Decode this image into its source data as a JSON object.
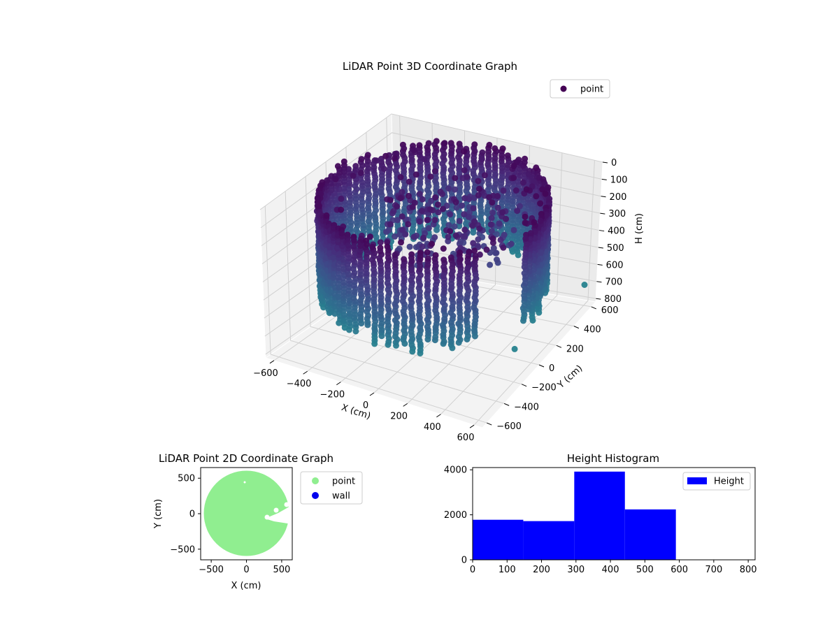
{
  "chart_data": [
    {
      "type": "scatter",
      "projection": "3d",
      "title": "LiDAR Point 3D Coordinate Graph",
      "xlabel": "X (cm)",
      "ylabel": "Y (cm)",
      "zlabel": "H (cm)",
      "xlim": [
        -650,
        650
      ],
      "ylim": [
        -650,
        650
      ],
      "zlim": [
        0,
        820
      ],
      "z_inverted": true,
      "x_ticks": [
        "−600",
        "−400",
        "−200",
        "0",
        "200",
        "400",
        "600"
      ],
      "y_ticks": [
        "−600",
        "−400",
        "−200",
        "0",
        "200",
        "400",
        "600"
      ],
      "z_ticks": [
        "0",
        "100",
        "200",
        "300",
        "400",
        "500",
        "600",
        "700",
        "800"
      ],
      "colormap": "viridis",
      "legend": {
        "position": "top-right",
        "entries": [
          "point"
        ]
      },
      "description_shape": "cylindrical wall of points, radius ~600 cm, height 0-590 cm, with interior clutter near the center"
    },
    {
      "type": "scatter",
      "title": "LiDAR Point 2D Coordinate Graph",
      "xlabel": "X (cm)",
      "ylabel": "Y (cm)",
      "xlim": [
        -650,
        650
      ],
      "ylim": [
        -650,
        650
      ],
      "x_ticks": [
        "−500",
        "0",
        "500"
      ],
      "y_ticks": [
        "−500",
        "0",
        "500"
      ],
      "series": [
        {
          "name": "point",
          "color": "#90ee90"
        },
        {
          "name": "wall",
          "color": "#0000ee"
        }
      ],
      "legend": {
        "position": "outside-right",
        "entries": [
          "point",
          "wall"
        ]
      }
    },
    {
      "type": "bar",
      "subtype": "histogram",
      "title": "Height Histogram",
      "bins": [
        [
          0,
          147
        ],
        [
          147,
          295
        ],
        [
          295,
          442
        ],
        [
          442,
          590
        ],
        [
          590,
          737
        ],
        [
          737,
          820
        ]
      ],
      "values": [
        1780,
        1720,
        3920,
        2240,
        0,
        0
      ],
      "xlim": [
        0,
        820
      ],
      "ylim": [
        0,
        4100
      ],
      "x_ticks": [
        "0",
        "100",
        "200",
        "300",
        "400",
        "500",
        "600",
        "700",
        "800"
      ],
      "y_ticks": [
        "0",
        "2000",
        "4000"
      ],
      "color": "#0000ff",
      "legend": {
        "position": "top-right",
        "entries": [
          "Height"
        ]
      }
    }
  ]
}
